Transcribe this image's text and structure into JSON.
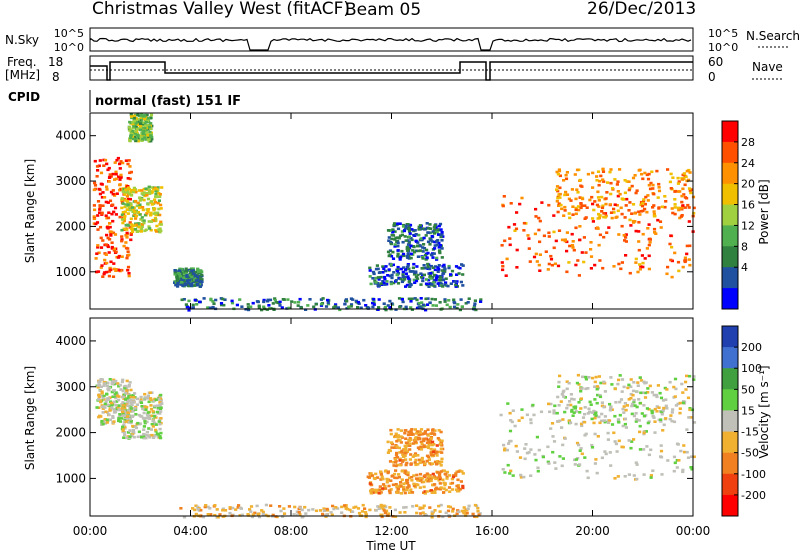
{
  "header": {
    "radar": "Christmas Valley West (fitACF)",
    "beam": "Beam 05",
    "date": "26/Dec/2013"
  },
  "top_panels": {
    "nsky_label": "N.Sky",
    "nsky_ticks": [
      "10^5",
      "10^0"
    ],
    "nsearch_label": "N.Search",
    "nsearch_ticks": [
      "10^5",
      "10^0"
    ],
    "freq_label_1": "Freq.",
    "freq_label_2": "[MHz]",
    "freq_ticks": [
      "18",
      "8"
    ],
    "nave_label": "Nave",
    "nave_ticks": [
      "60",
      "0"
    ],
    "cpid_label": "CPID",
    "cpid_value": "normal (fast) 151 IF"
  },
  "x_axis": {
    "label": "Time UT",
    "ticks": [
      "00:00",
      "04:00",
      "08:00",
      "12:00",
      "16:00",
      "20:00",
      "00:00"
    ]
  },
  "chart_data": [
    {
      "type": "heatmap",
      "name": "power",
      "ylabel": "Slant Range [km]",
      "yticks": [
        "4000",
        "3000",
        "2000",
        "1000"
      ],
      "ylim": [
        180,
        4500
      ],
      "xlim": [
        0,
        24
      ],
      "colorbar_label": "Power [dB]",
      "colorbar_ticks": [
        "28",
        "24",
        "20",
        "16",
        "12",
        "8",
        "4"
      ],
      "colorbar_colors": [
        "#ff0000",
        "#ff5000",
        "#ff9000",
        "#f0c000",
        "#a0d040",
        "#50b050",
        "#308040",
        "#2050a0",
        "#0000ff"
      ],
      "regions": [
        {
          "t": [
            0.1,
            1.6
          ],
          "r": [
            900,
            3600
          ],
          "level": 0.9
        },
        {
          "t": [
            1.2,
            2.8
          ],
          "r": [
            1900,
            2900
          ],
          "level": 0.55
        },
        {
          "t": [
            1.5,
            2.4
          ],
          "r": [
            3900,
            4500
          ],
          "level": 0.45
        },
        {
          "t": [
            3.3,
            4.4
          ],
          "r": [
            700,
            1100
          ],
          "level": 0.25
        },
        {
          "t": [
            3.5,
            15.5
          ],
          "r": [
            180,
            450
          ],
          "level": 0.2
        },
        {
          "t": [
            11.0,
            14.8
          ],
          "r": [
            700,
            1200
          ],
          "level": 0.15
        },
        {
          "t": [
            11.8,
            14.0
          ],
          "r": [
            1300,
            2100
          ],
          "level": 0.15
        },
        {
          "t": [
            16.3,
            24.0
          ],
          "r": [
            900,
            2700
          ],
          "level": 0.85
        },
        {
          "t": [
            18.5,
            24.0
          ],
          "r": [
            2200,
            3300
          ],
          "level": 0.75
        }
      ]
    },
    {
      "type": "heatmap",
      "name": "velocity",
      "ylabel": "Slant Range [km]",
      "yticks": [
        "4000",
        "3000",
        "2000",
        "1000"
      ],
      "ylim": [
        180,
        4500
      ],
      "xlim": [
        0,
        24
      ],
      "colorbar_label": "Velocity [m s⁻¹]",
      "colorbar_ticks": [
        "200",
        "100",
        "50",
        "15",
        "-15",
        "-50",
        "-100",
        "-200"
      ],
      "colorbar_colors": [
        "#2040b0",
        "#4070d0",
        "#40a040",
        "#60d040",
        "#c0c0b8",
        "#f0b030",
        "#f08020",
        "#f04010",
        "#ff0000"
      ],
      "regions": [
        {
          "t": [
            0.2,
            1.6
          ],
          "r": [
            2200,
            3200
          ],
          "level": 0.5
        },
        {
          "t": [
            1.2,
            2.8
          ],
          "r": [
            1900,
            2900
          ],
          "level": 0.5
        },
        {
          "t": [
            3.5,
            15.5
          ],
          "r": [
            180,
            450
          ],
          "level": 0.6
        },
        {
          "t": [
            11.0,
            14.8
          ],
          "r": [
            700,
            1200
          ],
          "level": 0.7
        },
        {
          "t": [
            11.8,
            14.0
          ],
          "r": [
            1300,
            2100
          ],
          "level": 0.7
        },
        {
          "t": [
            16.3,
            24.0
          ],
          "r": [
            1000,
            2700
          ],
          "level": 0.5
        },
        {
          "t": [
            18.5,
            24.0
          ],
          "r": [
            2200,
            3300
          ],
          "level": 0.5
        }
      ]
    }
  ]
}
